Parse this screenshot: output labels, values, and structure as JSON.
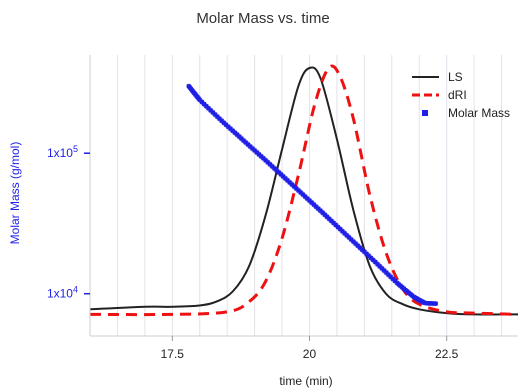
{
  "chart_data": {
    "type": "line",
    "title": "Molar Mass vs. time",
    "xlabel": "time (min)",
    "ylabel": "Molar Mass (g/mol)",
    "xlim": [
      16,
      23.8
    ],
    "x_ticks": [
      17.5,
      20,
      22.5
    ],
    "x_tick_labels": [
      "17.5",
      "20",
      "22.5"
    ],
    "y_scale": "log",
    "ylim": [
      5000,
      500000
    ],
    "y_ticks": [
      10000,
      100000
    ],
    "y_tick_labels": [
      "1x10^4",
      "1x10^5"
    ],
    "grid": "vertical",
    "legend_position": "top-right",
    "series": [
      {
        "name": "LS",
        "style": "solid",
        "color": "#222222",
        "x": [
          16.0,
          17.0,
          17.5,
          18.0,
          18.3,
          18.6,
          18.9,
          19.2,
          19.5,
          19.8,
          20.0,
          20.2,
          20.5,
          20.8,
          21.1,
          21.4,
          21.7,
          22.0,
          22.5,
          23.0,
          23.8
        ],
        "y_relative": [
          0.05,
          0.06,
          0.06,
          0.065,
          0.08,
          0.12,
          0.22,
          0.42,
          0.68,
          0.93,
          1.0,
          0.96,
          0.72,
          0.44,
          0.22,
          0.11,
          0.07,
          0.05,
          0.035,
          0.03,
          0.03
        ]
      },
      {
        "name": "dRI",
        "style": "dashed",
        "color": "#ee1111",
        "x": [
          16.0,
          17.5,
          18.5,
          18.9,
          19.2,
          19.5,
          19.8,
          20.1,
          20.35,
          20.55,
          20.8,
          21.1,
          21.4,
          21.7,
          22.0,
          22.5,
          23.0,
          23.8
        ],
        "y_relative": [
          0.03,
          0.03,
          0.04,
          0.08,
          0.16,
          0.33,
          0.58,
          0.86,
          1.0,
          0.97,
          0.8,
          0.5,
          0.27,
          0.13,
          0.07,
          0.04,
          0.035,
          0.03
        ]
      },
      {
        "name": "Molar Mass",
        "style": "markers",
        "color": "#1f1fe6",
        "x": [
          17.8,
          18.0,
          18.4,
          18.8,
          19.2,
          19.6,
          20.0,
          20.4,
          20.8,
          21.2,
          21.6,
          21.9,
          22.1,
          22.3
        ],
        "y": [
          300000,
          240000,
          170000,
          123000,
          89000,
          64000,
          46000,
          33000,
          23500,
          16800,
          11900,
          9500,
          8600,
          8500
        ]
      }
    ]
  }
}
